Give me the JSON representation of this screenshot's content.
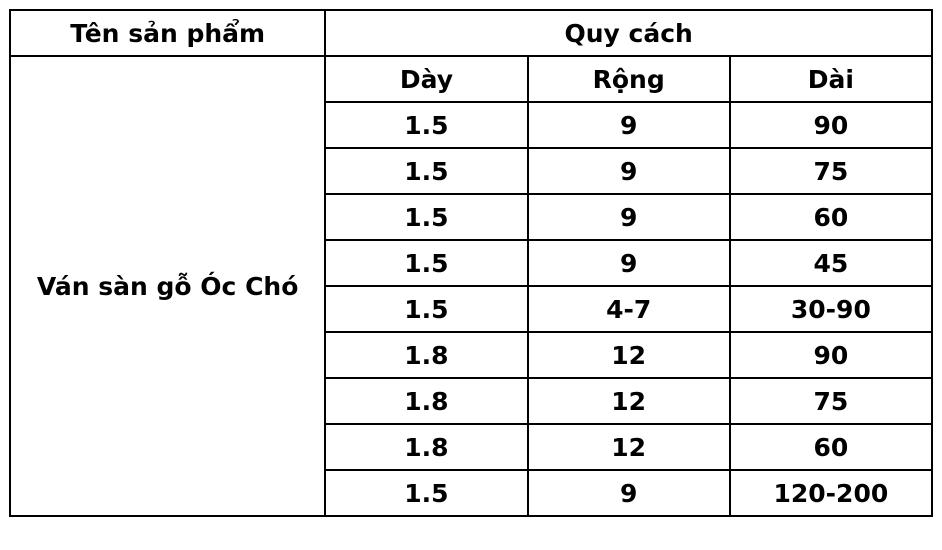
{
  "headers": {
    "product": "Tên sản phẩm",
    "spec": "Quy cách",
    "thickness": "Dày",
    "width": "Rộng",
    "length": "Dài"
  },
  "product_name": "Ván sàn gỗ Óc Chó",
  "rows": [
    [
      "1.5",
      "9",
      "90"
    ],
    [
      "1.5",
      "9",
      "75"
    ],
    [
      "1.5",
      "9",
      "60"
    ],
    [
      "1.5",
      "9",
      "45"
    ],
    [
      "1.5",
      "4-7",
      "30-90"
    ],
    [
      "1.8",
      "12",
      "90"
    ],
    [
      "1.8",
      "12",
      "75"
    ],
    [
      "1.8",
      "12",
      "60"
    ],
    [
      "1.5",
      "9",
      "120-200"
    ]
  ]
}
